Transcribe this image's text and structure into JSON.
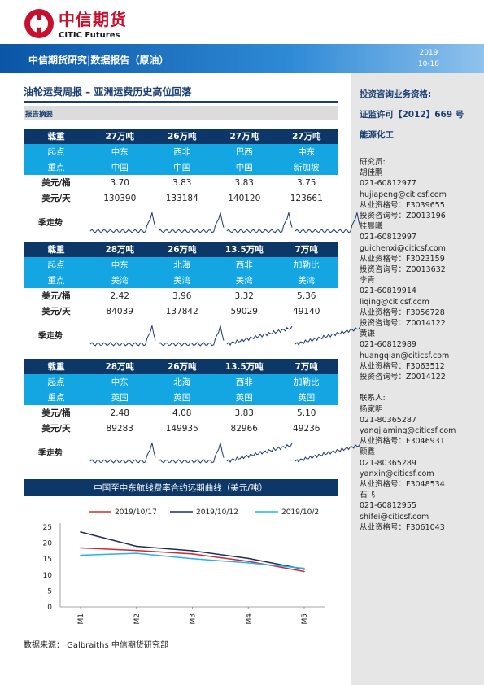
{
  "brand": {
    "name_cn": "中信期货",
    "name_en": "CITIC Futures"
  },
  "banner": {
    "title": "中信期货研究|数据报告（原油）",
    "year": "2019",
    "date": "10-18"
  },
  "report": {
    "title": "油轮运费周报  –  亚洲运费历史高位回落",
    "summary_label": "报告摘要"
  },
  "sidebar": {
    "qualification_title": "投资咨询业务资格:",
    "license": "证监许可【2012】669 号",
    "department": "能源化工",
    "lines": [
      "研究员:",
      "胡佳鹏",
      "021-60812977",
      "hujiapeng@citicsf.com",
      "从业资格号：F3039655",
      "投资咨询号：Z0013196",
      "桂晨曦",
      "021-60812997",
      "guichenxi@citicsf.com",
      "从业资格号：F3023159",
      "投资咨询号：Z0013632",
      "李青",
      "021-60819914",
      "liqing@citicsf.com",
      "从业资格号：F3056728",
      "投资咨询号：Z0014122",
      "黄谦",
      "021-60812989",
      "huangqian@citicsf.com",
      "从业资格号：F3063512",
      "投资咨询号：Z0014122",
      "",
      "联系人:",
      "杨家明",
      "021-80365287",
      "yangjiaming@citicsf.com",
      "从业资格号：F3046931",
      "颜鑫",
      "021-80365289",
      "yanxin@citicsf.com",
      "从业资格号：F3048534",
      "石飞",
      "021-60812955",
      "shifei@citicsf.com",
      "从业资格号：F3061043"
    ]
  },
  "tables": [
    {
      "load_label": "载重",
      "origin_label": "起点",
      "dest_label": "重点",
      "bbl_label": "美元/桶",
      "day_label": "美元/天",
      "season_label": "季走势",
      "loads": [
        "27万吨",
        "26万吨",
        "27万吨",
        "27万吨"
      ],
      "origins": [
        "中东",
        "西非",
        "巴西",
        "中东"
      ],
      "dests": [
        "中国",
        "中国",
        "中国",
        "新加坡"
      ],
      "bbl": [
        "3.70",
        "3.83",
        "3.83",
        "3.75"
      ],
      "day": [
        "130390",
        "133184",
        "140120",
        "123661"
      ],
      "spark_type": "spike"
    },
    {
      "load_label": "载重",
      "origin_label": "起点",
      "dest_label": "重点",
      "bbl_label": "美元/桶",
      "day_label": "美元/天",
      "season_label": "季走势",
      "loads": [
        "28万吨",
        "26万吨",
        "13.5万吨",
        "7万吨"
      ],
      "origins": [
        "中东",
        "北海",
        "西非",
        "加勒比"
      ],
      "dests": [
        "美湾",
        "美湾",
        "美湾",
        "美湾"
      ],
      "bbl": [
        "2.42",
        "3.96",
        "3.32",
        "5.36"
      ],
      "day": [
        "84039",
        "137842",
        "59029",
        "49140"
      ],
      "spark_type": "mixed"
    },
    {
      "load_label": "载重",
      "origin_label": "起点",
      "dest_label": "重点",
      "bbl_label": "美元/桶",
      "day_label": "美元/天",
      "season_label": "季走势",
      "loads": [
        "28万吨",
        "26万吨",
        "13.5万吨",
        "7万吨"
      ],
      "origins": [
        "中东",
        "北海",
        "西非",
        "加勒比"
      ],
      "dests": [
        "英国",
        "英国",
        "英国",
        "英国"
      ],
      "bbl": [
        "2.48",
        "4.08",
        "3.83",
        "5.10"
      ],
      "day": [
        "89283",
        "149935",
        "82966",
        "49236"
      ],
      "spark_type": "mixed"
    }
  ],
  "chart_data": {
    "type": "line",
    "title": "中国至中东航线费率合约远期曲线（美元/吨）",
    "categories": [
      "M1",
      "M2",
      "M3",
      "M4",
      "M5"
    ],
    "ylim": [
      0,
      25
    ],
    "yticks": [
      0,
      5,
      10,
      15,
      20,
      25
    ],
    "legend_position": "top",
    "series": [
      {
        "name": "2019/10/17",
        "color": "#d6262d",
        "values": [
          18.5,
          17.7,
          16.6,
          14.3,
          11.1
        ]
      },
      {
        "name": "2019/10/12",
        "color": "#1f2d5a",
        "values": [
          23.5,
          19.0,
          17.6,
          15.2,
          11.8
        ]
      },
      {
        "name": "2019/10/2",
        "color": "#23b3f0",
        "values": [
          16.2,
          16.8,
          15.1,
          13.8,
          12.1
        ]
      }
    ]
  },
  "source": "数据来源：  Galbraiths 中信期货研究部"
}
